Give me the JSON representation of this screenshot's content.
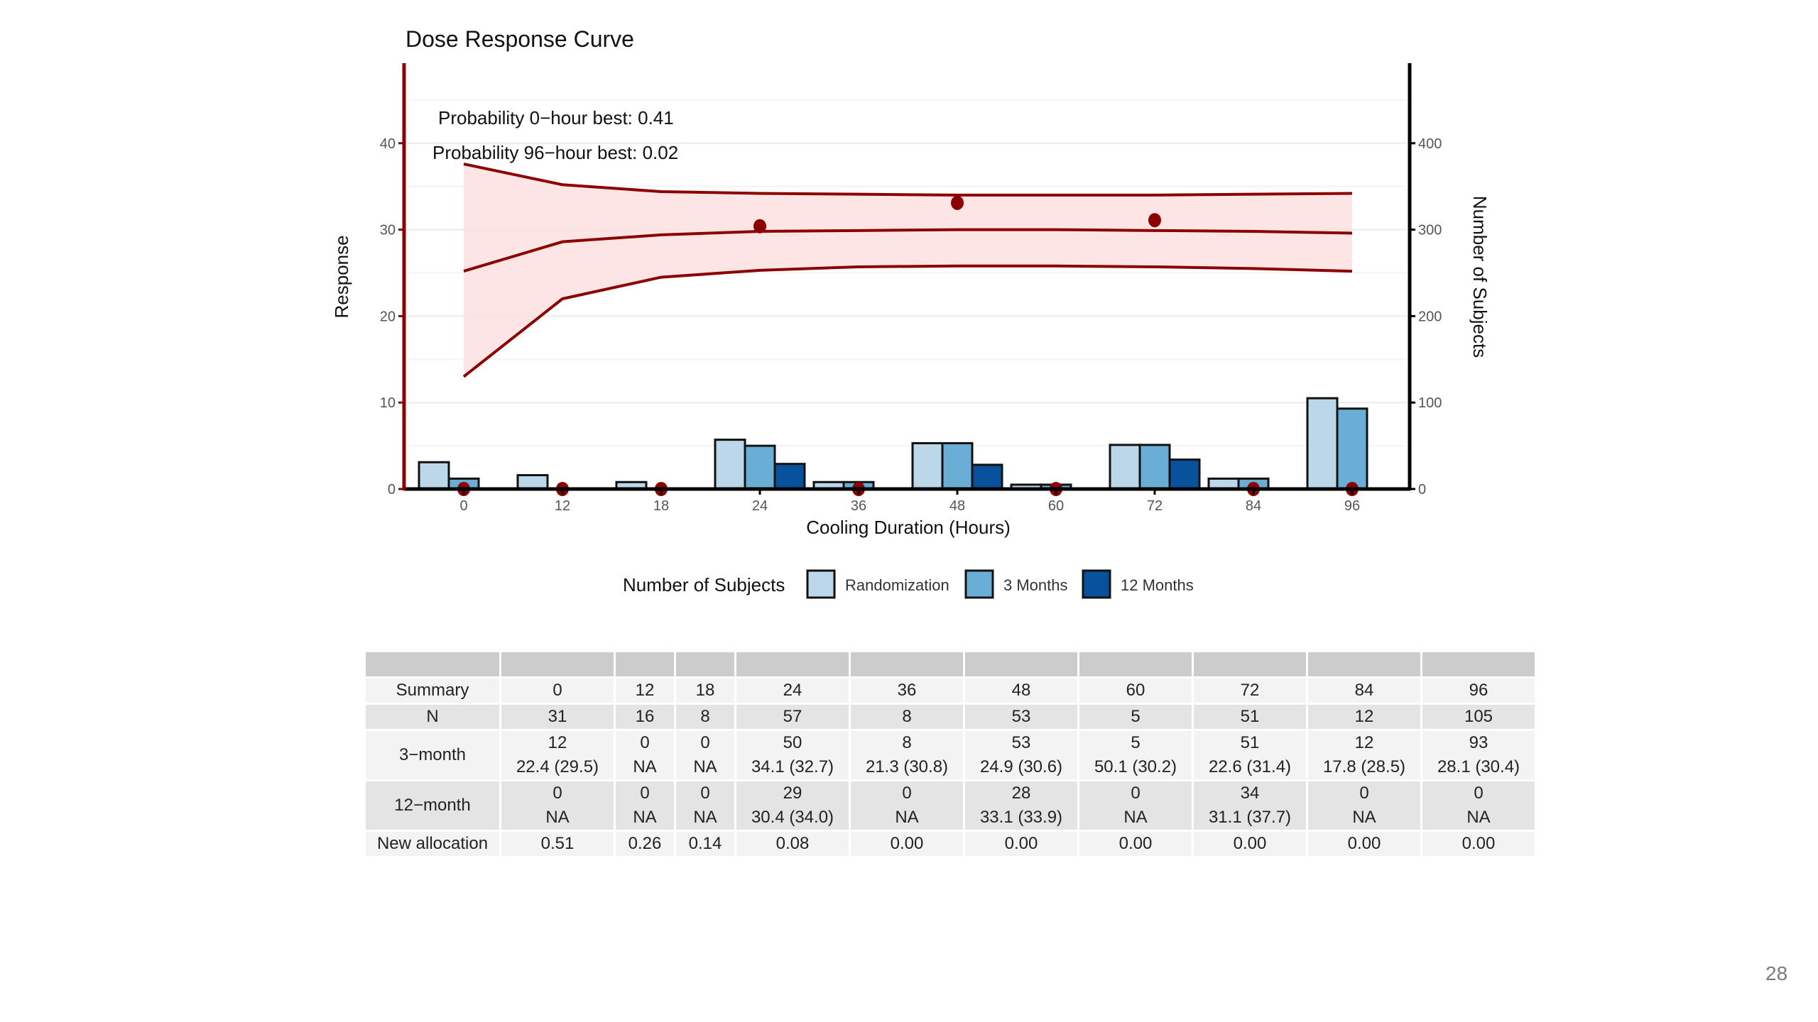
{
  "page": {
    "number": "28"
  },
  "chart_data": {
    "type": "bar+line",
    "title": "Dose Response Curve",
    "xlabel": "Cooling Duration (Hours)",
    "ylabel_left": "Response",
    "ylabel_right": "Number of Subjects",
    "categories": [
      "0",
      "12",
      "18",
      "24",
      "36",
      "48",
      "60",
      "72",
      "84",
      "96"
    ],
    "ylim_left": [
      0,
      47
    ],
    "yticks_left": [
      0,
      10,
      20,
      30,
      40
    ],
    "ylim_right": [
      0,
      470
    ],
    "yticks_right": [
      0,
      100,
      200,
      300,
      400
    ],
    "grid": true,
    "annotations": [
      "Probability 0−hour best: 0.41",
      "Probability 96−hour best: 0.02"
    ],
    "bar_series": [
      {
        "name": "Randomization",
        "color": "#bcd7e9",
        "values": [
          31,
          16,
          8,
          57,
          8,
          53,
          5,
          51,
          12,
          105
        ]
      },
      {
        "name": "3 Months",
        "color": "#6aaed6",
        "values": [
          12,
          0,
          0,
          50,
          8,
          53,
          5,
          51,
          12,
          93
        ]
      },
      {
        "name": "12 Months",
        "color": "#08519c",
        "values": [
          0,
          0,
          0,
          29,
          0,
          28,
          0,
          34,
          0,
          0
        ]
      }
    ],
    "curve": {
      "color": "#8b0000",
      "band_fill": "#fde0e0",
      "upper": [
        37.6,
        35.2,
        34.4,
        34.2,
        34.1,
        34.0,
        34.0,
        34.0,
        34.1,
        34.2
      ],
      "mean": [
        25.2,
        28.6,
        29.4,
        29.8,
        29.9,
        30.0,
        30.0,
        29.9,
        29.8,
        29.6
      ],
      "lower": [
        13.0,
        22.0,
        24.5,
        25.3,
        25.7,
        25.8,
        25.8,
        25.7,
        25.5,
        25.2
      ]
    },
    "points": {
      "color": "#8b0000",
      "values": [
        0,
        0,
        0,
        30.4,
        0,
        33.1,
        0,
        31.1,
        0,
        0
      ]
    },
    "legend": {
      "title": "Number of Subjects",
      "position": "bottom",
      "entries": [
        "Randomization",
        "3 Months",
        "12 Months"
      ]
    }
  },
  "table": {
    "header": [
      "",
      "",
      "",
      "",
      "",
      "",
      "",
      "",
      "",
      "",
      ""
    ],
    "rows": [
      {
        "label": "Summary",
        "cells": [
          [
            "0"
          ],
          [
            "12"
          ],
          [
            "18"
          ],
          [
            "24"
          ],
          [
            "36"
          ],
          [
            "48"
          ],
          [
            "60"
          ],
          [
            "72"
          ],
          [
            "84"
          ],
          [
            "96"
          ]
        ]
      },
      {
        "label": "N",
        "cells": [
          [
            "31"
          ],
          [
            "16"
          ],
          [
            "8"
          ],
          [
            "57"
          ],
          [
            "8"
          ],
          [
            "53"
          ],
          [
            "5"
          ],
          [
            "51"
          ],
          [
            "12"
          ],
          [
            "105"
          ]
        ]
      },
      {
        "label": "3−month",
        "cells": [
          [
            "12",
            "22.4 (29.5)"
          ],
          [
            "0",
            "NA"
          ],
          [
            "0",
            "NA"
          ],
          [
            "50",
            "34.1 (32.7)"
          ],
          [
            "8",
            "21.3 (30.8)"
          ],
          [
            "53",
            "24.9 (30.6)"
          ],
          [
            "5",
            "50.1 (30.2)"
          ],
          [
            "51",
            "22.6 (31.4)"
          ],
          [
            "12",
            "17.8 (28.5)"
          ],
          [
            "93",
            "28.1 (30.4)"
          ]
        ]
      },
      {
        "label": "12−month",
        "cells": [
          [
            "0",
            "NA"
          ],
          [
            "0",
            "NA"
          ],
          [
            "0",
            "NA"
          ],
          [
            "29",
            "30.4 (34.0)"
          ],
          [
            "0",
            "NA"
          ],
          [
            "28",
            "33.1 (33.9)"
          ],
          [
            "0",
            "NA"
          ],
          [
            "34",
            "31.1 (37.7)"
          ],
          [
            "0",
            "NA"
          ],
          [
            "0",
            "NA"
          ]
        ]
      },
      {
        "label": "New allocation",
        "cells": [
          [
            "0.51"
          ],
          [
            "0.26"
          ],
          [
            "0.14"
          ],
          [
            "0.08"
          ],
          [
            "0.00"
          ],
          [
            "0.00"
          ],
          [
            "0.00"
          ],
          [
            "0.00"
          ],
          [
            "0.00"
          ],
          [
            "0.00"
          ]
        ]
      }
    ]
  }
}
